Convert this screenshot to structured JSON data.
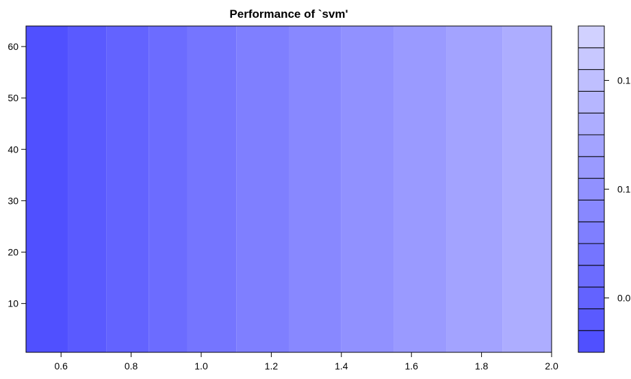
{
  "chart_data": {
    "type": "heatmap",
    "title": "Performance of `svm'",
    "xlabel": "",
    "ylabel": "",
    "xlim": [
      0.5,
      2.0
    ],
    "ylim": [
      0.5,
      64
    ],
    "x_ticks": [
      {
        "value": 0.6,
        "label": "0.6"
      },
      {
        "value": 0.8,
        "label": "0.8"
      },
      {
        "value": 1.0,
        "label": "1.0"
      },
      {
        "value": 1.2,
        "label": "1.2"
      },
      {
        "value": 1.4,
        "label": "1.4"
      },
      {
        "value": 1.6,
        "label": "1.6"
      },
      {
        "value": 1.8,
        "label": "1.8"
      },
      {
        "value": 2.0,
        "label": "2.0"
      }
    ],
    "y_ticks": [
      {
        "value": 10,
        "label": "10"
      },
      {
        "value": 20,
        "label": "20"
      },
      {
        "value": 30,
        "label": "30"
      },
      {
        "value": 40,
        "label": "40"
      },
      {
        "value": 50,
        "label": "50"
      },
      {
        "value": 60,
        "label": "60"
      }
    ],
    "vertical_bands": [
      {
        "x_from": 0.5,
        "x_to": 0.62,
        "level": 1
      },
      {
        "x_from": 0.62,
        "x_to": 0.73,
        "level": 2
      },
      {
        "x_from": 0.73,
        "x_to": 0.85,
        "level": 3
      },
      {
        "x_from": 0.85,
        "x_to": 0.96,
        "level": 4
      },
      {
        "x_from": 0.96,
        "x_to": 1.1,
        "level": 5
      },
      {
        "x_from": 1.1,
        "x_to": 1.25,
        "level": 6
      },
      {
        "x_from": 1.25,
        "x_to": 1.4,
        "level": 7
      },
      {
        "x_from": 1.4,
        "x_to": 1.55,
        "level": 8
      },
      {
        "x_from": 1.55,
        "x_to": 1.7,
        "level": 9
      },
      {
        "x_from": 1.7,
        "x_to": 1.86,
        "level": 10
      },
      {
        "x_from": 1.86,
        "x_to": 2.0,
        "level": 11
      }
    ],
    "level_colors": [
      "#5050ff",
      "#5a5aff",
      "#6363ff",
      "#6c6cff",
      "#7575ff",
      "#7f7fff",
      "#8888ff",
      "#9191ff",
      "#9a9aff",
      "#a3a3ff",
      "#adadff",
      "#b6b6ff",
      "#bfbfff",
      "#c8c8ff",
      "#d1d1ff"
    ],
    "colorbar": {
      "levels": 15,
      "tick_labels": [
        {
          "level_from_bottom": 2.5,
          "label": "0.0"
        },
        {
          "level_from_bottom": 7.5,
          "label": "0.1"
        },
        {
          "level_from_bottom": 12.5,
          "label": "0.1"
        }
      ]
    }
  }
}
